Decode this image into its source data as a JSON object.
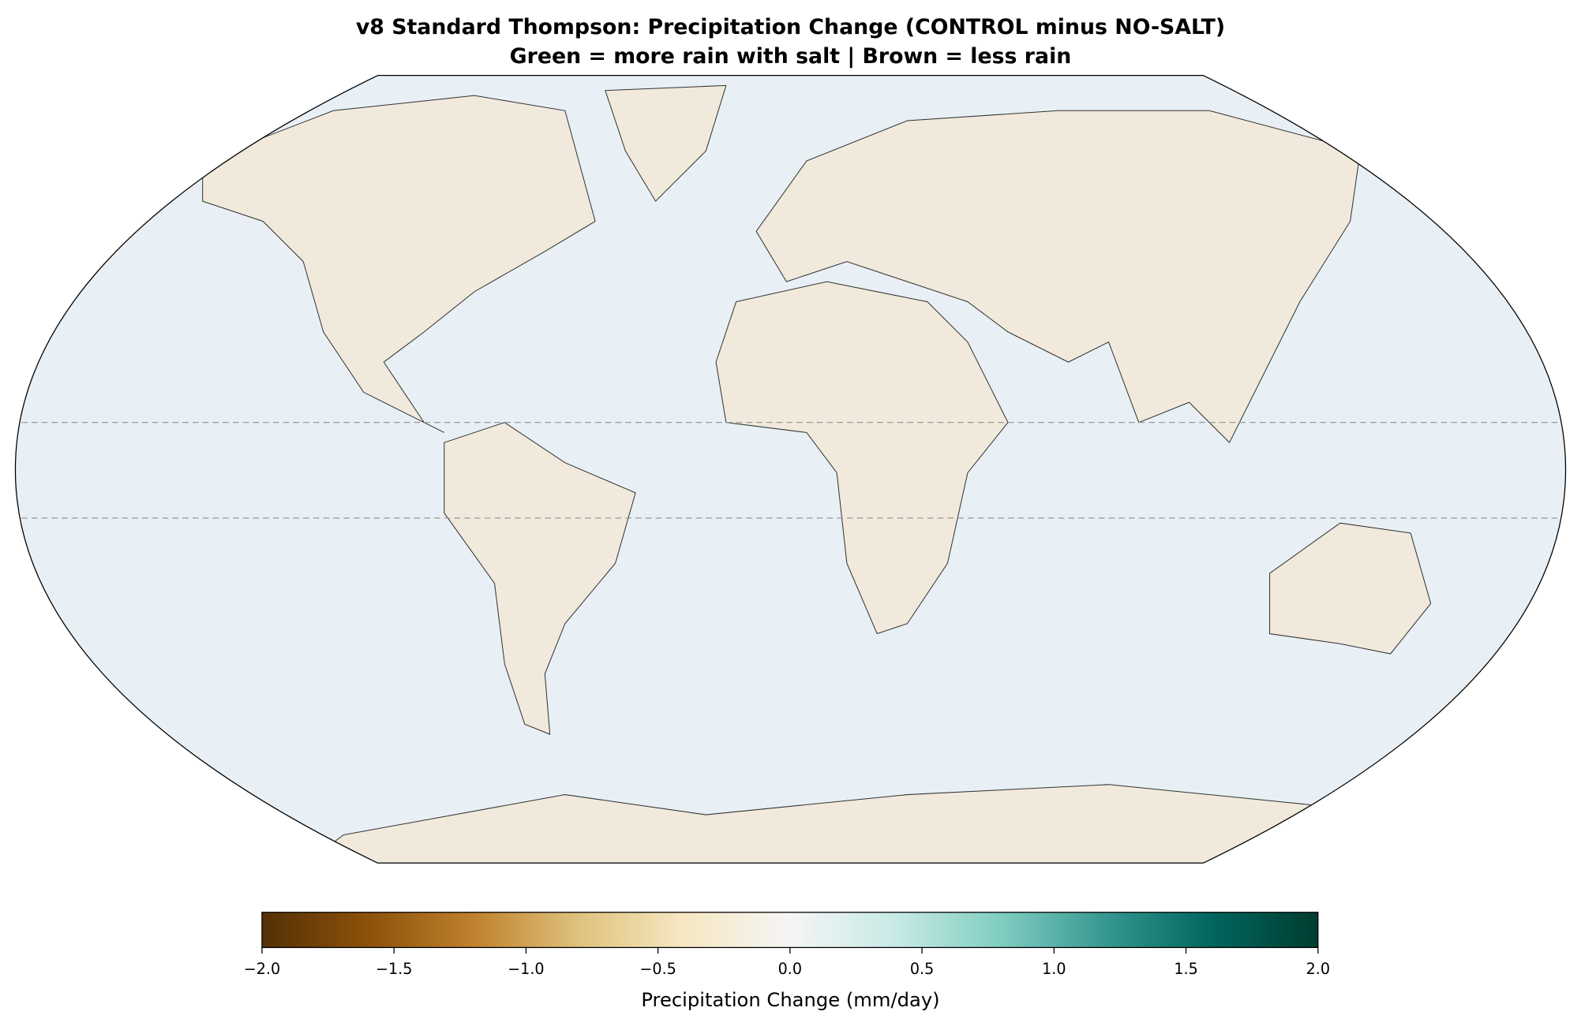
{
  "title": "v8 Standard Thompson: Precipitation Change (CONTROL minus NO-SALT)",
  "subtitle": "Green = more rain with salt | Brown = less rain",
  "colorbar": {
    "label": "Precipitation Change (mm/day)",
    "lim": [
      -2,
      2
    ],
    "ticks": [
      {
        "value": -2,
        "label": "−2.0"
      },
      {
        "value": -1.5,
        "label": "−1.5"
      },
      {
        "value": -1,
        "label": "−1.0"
      },
      {
        "value": -0.5,
        "label": "−0.5"
      },
      {
        "value": 0,
        "label": "0.0"
      },
      0.5,
      {
        "value": 1,
        "label": "1.0"
      },
      1.5,
      {
        "value": 2,
        "label": "2.0"
      }
    ],
    "colors": [
      "#543005",
      "#8c510a",
      "#bf812d",
      "#dfc27d",
      "#f6e8c3",
      "#f5f5f5",
      "#c7eae5",
      "#80cdc1",
      "#35978f",
      "#01665e",
      "#003c30"
    ]
  }
}
